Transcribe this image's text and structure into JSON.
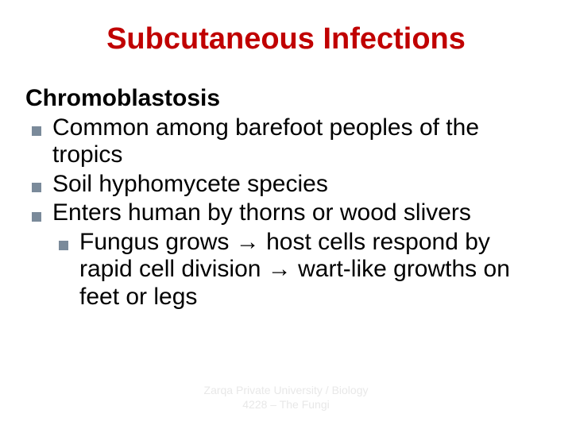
{
  "title": "Subcutaneous Infections",
  "title_color": "#c00000",
  "title_fontsize": 38,
  "subtitle": "Chromoblastosis",
  "body_color": "#000000",
  "body_fontsize": 30,
  "line_height": 1.15,
  "bullets": [
    "Common among barefoot peoples of the tropics",
    "Soil hyphomycete species",
    "Enters human by thorns or wood slivers"
  ],
  "sub_bullet_parts": {
    "p1": "Fungus grows ",
    "p2": " host cells respond by rapid cell division ",
    "p3": " wart-like growths on feet or legs"
  },
  "arrow_glyph": "→",
  "bullet_square_color": "#7a8a9a",
  "footer": {
    "line1": "Zarqa Private University / Biology",
    "line2": "4228 – The Fungi",
    "color": "#e8e8e8",
    "fontsize": 14
  },
  "background_color": "#ffffff"
}
